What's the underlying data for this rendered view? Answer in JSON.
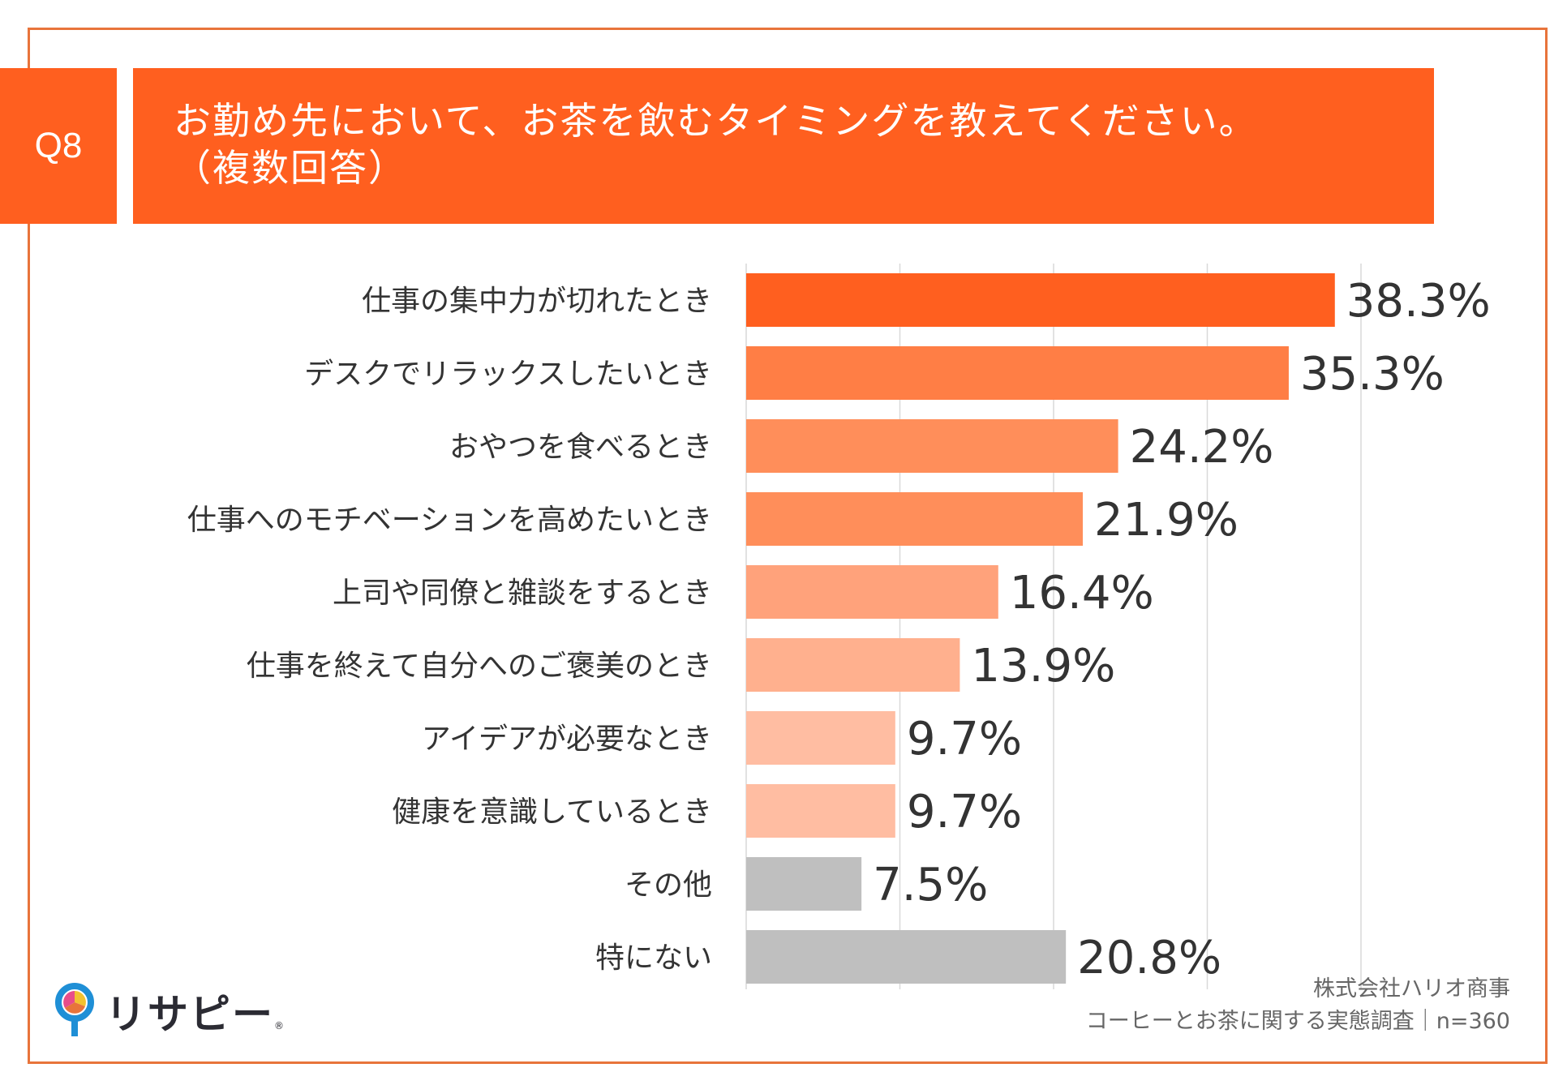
{
  "question": {
    "number": "Q8",
    "line1": "お勤め先において、お茶を飲むタイミングを教えてください。",
    "line2": "（複数回答）"
  },
  "colors": {
    "accent": "#ff5f1f",
    "frame": "#e8743b"
  },
  "chart_data": {
    "type": "bar",
    "orientation": "horizontal",
    "title": "お勤め先において、お茶を飲むタイミングを教えてください。（複数回答）",
    "categories": [
      "仕事の集中力が切れたとき",
      "デスクでリラックスしたいとき",
      "おやつを食べるとき",
      "仕事へのモチベーションを高めたいとき",
      "上司や同僚と雑談をするとき",
      "仕事を終えて自分へのご褒美のとき",
      "アイデアが必要なとき",
      "健康を意識しているとき",
      "その他",
      "特にない"
    ],
    "values": [
      38.3,
      35.3,
      24.2,
      21.9,
      16.4,
      13.9,
      9.7,
      9.7,
      7.5,
      20.8
    ],
    "value_labels": [
      "38.3%",
      "35.3%",
      "24.2%",
      "21.9%",
      "16.4%",
      "13.9%",
      "9.7%",
      "9.7%",
      "7.5%",
      "20.8%"
    ],
    "bar_colors": [
      "#ff5f1f",
      "#ff7e45",
      "#ff8e5a",
      "#ff8e5a",
      "#ffa27b",
      "#ffb08e",
      "#ffbda2",
      "#ffbda2",
      "#bfbfbf",
      "#bfbfbf"
    ],
    "xlim": [
      0,
      40
    ],
    "grid_step": 10,
    "grid": true,
    "legend": "none",
    "xlabel": "",
    "ylabel": ""
  },
  "source": {
    "company": "株式会社ハリオ商事",
    "survey": "コーヒーとお茶に関する実態調査｜n=360"
  },
  "logo": {
    "text": "リサピー",
    "mark": "®"
  }
}
